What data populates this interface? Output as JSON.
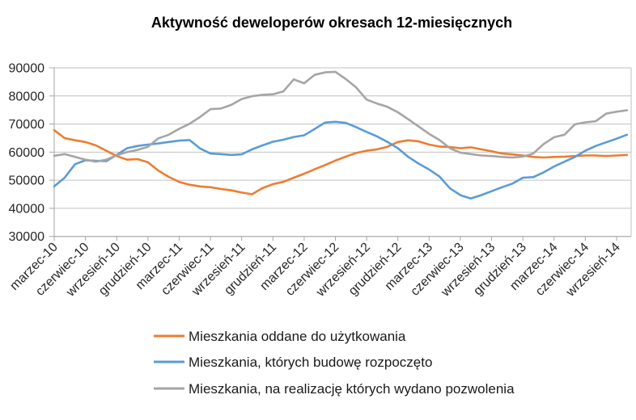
{
  "chart_data": {
    "type": "line",
    "title": "Aktywność deweloperów okresach 12-miesięcznych",
    "x_tick_labels": [
      "marzec-10",
      "czerwiec-10",
      "wrzesień-10",
      "grudzień-10",
      "marzec-11",
      "czerwiec-11",
      "wrzesień-11",
      "grudzień-11",
      "marzec-12",
      "czerwiec-12",
      "wrzesień-12",
      "grudzień-12",
      "marzec-13",
      "czerwiec-13",
      "wrzesień-13",
      "grudzień-13",
      "marzec-14",
      "czerwiec-14",
      "wrzesień-14"
    ],
    "x_points_per_tick": 3,
    "y_tick_labels": [
      "30000",
      "40000",
      "50000",
      "60000",
      "70000",
      "80000",
      "90000"
    ],
    "ylim": [
      30000,
      90000
    ],
    "ytick_step": 10000,
    "grid": "horizontal",
    "legend_position": "bottom-left",
    "series": [
      {
        "name": "Mieszkania oddane do użytkowania",
        "color": "#ED7D31",
        "values": [
          67800,
          65000,
          64200,
          63600,
          62400,
          60500,
          58600,
          57300,
          57500,
          56400,
          53400,
          51200,
          49400,
          48400,
          47800,
          47500,
          46900,
          46400,
          45600,
          45000,
          47200,
          48600,
          49400,
          50900,
          52300,
          53900,
          55400,
          57000,
          58400,
          59700,
          60500,
          61000,
          61900,
          63600,
          64200,
          63800,
          62700,
          62000,
          61800,
          61400,
          61700,
          61000,
          60300,
          59500,
          59200,
          58800,
          58300,
          58100,
          58300,
          58400,
          58600,
          58800,
          58800,
          58600,
          58800,
          59000
        ]
      },
      {
        "name": "Mieszkania, których budowę rozpoczęto",
        "color": "#5B9BD5",
        "values": [
          47800,
          50900,
          55700,
          57100,
          56900,
          56800,
          59000,
          61400,
          62200,
          62700,
          63100,
          63600,
          64100,
          64300,
          61300,
          59500,
          59300,
          59000,
          59200,
          61000,
          62400,
          63700,
          64400,
          65400,
          66000,
          68200,
          70500,
          70800,
          70400,
          68900,
          67200,
          65600,
          63600,
          61400,
          58300,
          55900,
          53800,
          51300,
          47100,
          44700,
          43500,
          44700,
          46100,
          47500,
          48800,
          50900,
          51100,
          52800,
          54900,
          56600,
          58300,
          60500,
          62200,
          63500,
          64800,
          66200
        ]
      },
      {
        "name": "Mieszkania, na realizację których wydano pozwolenia",
        "color": "#A5A5A5",
        "values": [
          58700,
          59300,
          58300,
          57300,
          56600,
          57300,
          58900,
          60000,
          60800,
          61900,
          64900,
          66200,
          68300,
          70100,
          72500,
          75300,
          75500,
          76800,
          78900,
          79900,
          80400,
          80600,
          81600,
          85900,
          84500,
          87500,
          88400,
          88600,
          86000,
          83000,
          78700,
          77300,
          76100,
          74200,
          71700,
          69100,
          66500,
          64300,
          61400,
          59800,
          59300,
          58800,
          58600,
          58300,
          58100,
          58400,
          59500,
          62900,
          65300,
          66200,
          69900,
          70600,
          71000,
          73700,
          74400,
          74900
        ]
      }
    ]
  },
  "colors": {
    "gridline": "#C0C0C0",
    "axis": "#A6A6A6",
    "tick": "#A6A6A6",
    "axis_text": "#262626",
    "title_text": "#000000",
    "background": "#FFFFFF"
  }
}
